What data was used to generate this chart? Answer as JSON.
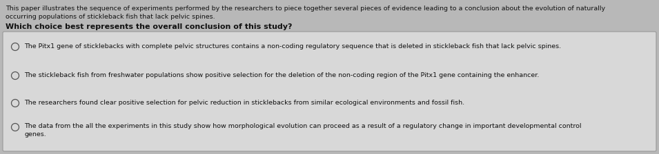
{
  "bg_color": "#b8b8b8",
  "box_bg": "#d8d8d8",
  "box_edge": "#999999",
  "intro_text_line1": "This paper illustrates the sequence of experiments performed by the researchers to piece together several pieces of evidence leading to a conclusion about the evolution of naturally",
  "intro_text_line2": "occurring populations of stickleback fish that lack pelvic spines.",
  "question": "Which choice best represents the overall conclusion of this study?",
  "option1": "The Pitx1 gene of sticklebacks with complete pelvic structures contains a non-coding regulatory sequence that is deleted in stickleback fish that lack pelvic spines.",
  "option2": "The stickleback fish from freshwater populations show positive selection for the deletion of the non-coding region of the Pitx1 gene containing the enhancer.",
  "option3": "The researchers found clear positive selection for pelvic reduction in sticklebacks from similar ecological environments and fossil fish.",
  "option4a": "The data from the all the experiments in this study show how morphological evolution can proceed as a result of a regulatory change in important developmental control",
  "option4b": "genes.",
  "intro_fontsize": 6.8,
  "question_fontsize": 8.0,
  "option_fontsize": 6.8,
  "text_color": "#111111",
  "circle_color": "#555555",
  "figsize": [
    9.55,
    2.24
  ],
  "dpi": 100
}
